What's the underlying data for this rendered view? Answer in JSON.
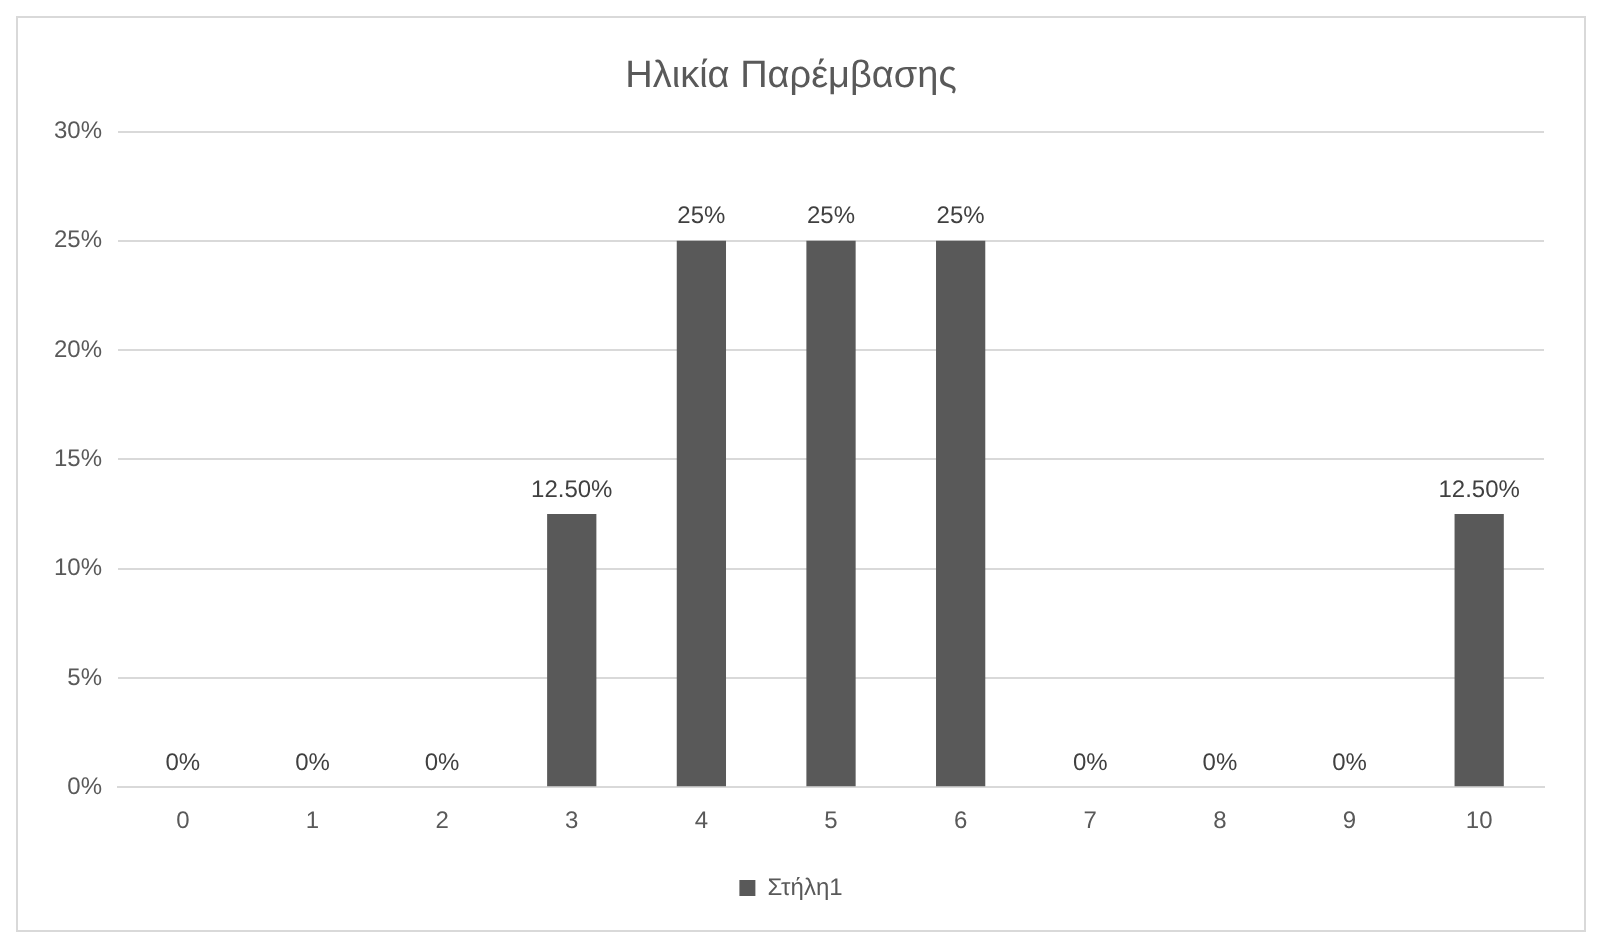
{
  "chart_data": {
    "type": "bar",
    "title": "Ηλικία Παρέμβασης",
    "categories": [
      "0",
      "1",
      "2",
      "3",
      "4",
      "5",
      "6",
      "7",
      "8",
      "9",
      "10"
    ],
    "series": [
      {
        "name": "Στήλη1",
        "color": "#595959",
        "values": [
          0,
          0,
          0,
          12.5,
          25,
          25,
          25,
          0,
          0,
          0,
          12.5
        ],
        "value_labels": [
          "0%",
          "0%",
          "0%",
          "12.50%",
          "25%",
          "25%",
          "25%",
          "0%",
          "0%",
          "0%",
          "12.50%"
        ]
      }
    ],
    "ylim": [
      0,
      30
    ],
    "yticks": [
      {
        "value": 0,
        "label": "0%"
      },
      {
        "value": 5,
        "label": "5%"
      },
      {
        "value": 10,
        "label": "10%"
      },
      {
        "value": 15,
        "label": "15%"
      },
      {
        "value": 20,
        "label": "20%"
      },
      {
        "value": 25,
        "label": "25%"
      },
      {
        "value": 30,
        "label": "30%"
      }
    ],
    "grid": "y",
    "legend": "bottom"
  }
}
